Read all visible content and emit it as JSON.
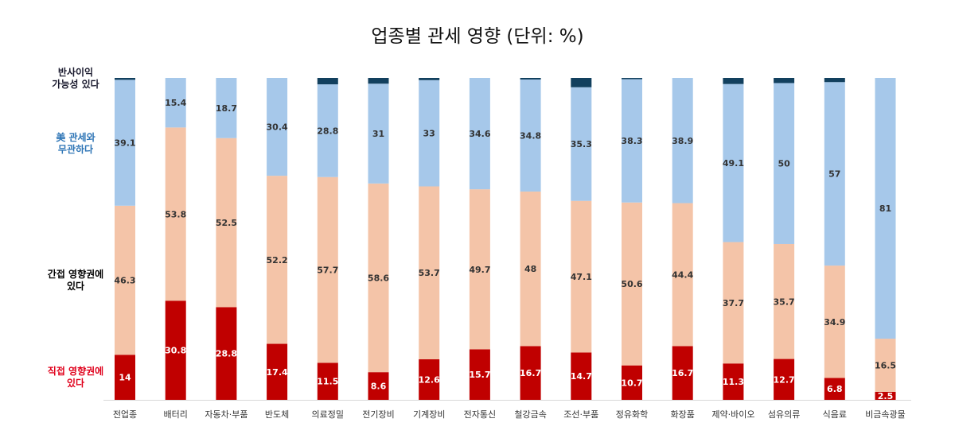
{
  "title": "업종별 관세 영향 (단위: %)",
  "legend": [
    {
      "text": "반사이익\n가능성 있다",
      "color": "#1a1a2e"
    },
    {
      "text": "美 관세와\n무관하다",
      "color": "#2e75b6"
    },
    {
      "text": "간접 영향권에\n있다",
      "color": "#000000"
    },
    {
      "text": "직접 영향권에\n있다",
      "color": "#e0001b"
    }
  ],
  "chart_data": {
    "type": "bar",
    "stacked": true,
    "ylim": [
      0,
      100
    ],
    "grid": false,
    "categories": [
      "전업종",
      "배터리",
      "자동차·부품",
      "반도체",
      "의료정밀",
      "전기장비",
      "기계장비",
      "전자통신",
      "철강금속",
      "조선·부품",
      "정유화학",
      "화장품",
      "제약·바이오",
      "섬유의류",
      "식음료",
      "비금속광물"
    ],
    "series": [
      {
        "name": "직접 영향권에 있다",
        "color": "#c00000",
        "label_color": "#ffffff",
        "values": [
          14,
          30.8,
          28.8,
          17.4,
          11.5,
          8.6,
          12.6,
          15.7,
          16.7,
          14.7,
          10.7,
          16.7,
          11.3,
          12.7,
          6.8,
          2.5
        ]
      },
      {
        "name": "간접 영향권에 있다",
        "color": "#f4c4a8",
        "label_color": "#333333",
        "values": [
          46.3,
          53.8,
          52.5,
          52.2,
          57.7,
          58.6,
          53.7,
          49.7,
          48,
          47.1,
          50.6,
          44.4,
          37.7,
          35.7,
          34.9,
          16.5
        ]
      },
      {
        "name": "美 관세와 무관하다",
        "color": "#a6c8ea",
        "label_color": "#333333",
        "values": [
          39.1,
          15.4,
          18.7,
          30.4,
          28.8,
          31,
          33,
          34.6,
          34.8,
          35.3,
          38.3,
          38.9,
          49.1,
          50,
          57,
          81
        ]
      },
      {
        "name": "반사이익 가능성 있다",
        "color": "#12405e",
        "label_color": "#ffffff",
        "values": [
          0.6,
          0,
          0,
          0,
          2,
          1.8,
          0.7,
          0,
          0.5,
          2.9,
          0.4,
          0,
          1.9,
          1.6,
          1.3,
          0
        ]
      }
    ]
  }
}
